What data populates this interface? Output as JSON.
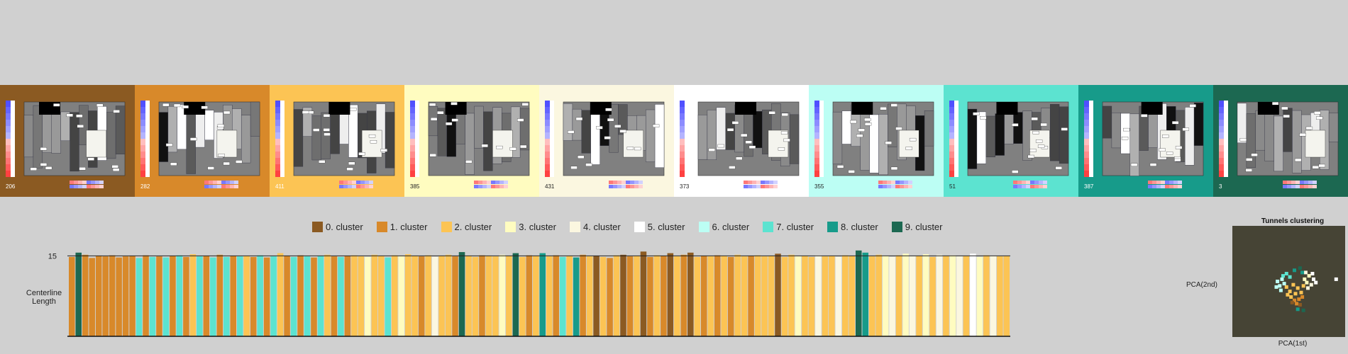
{
  "clusters": [
    {
      "label": "0. cluster",
      "color": "#8b5a22",
      "count": "206",
      "light": false
    },
    {
      "label": "1. cluster",
      "color": "#d8892a",
      "count": "282",
      "light": false
    },
    {
      "label": "2. cluster",
      "color": "#fcc454",
      "count": "411",
      "light": false
    },
    {
      "label": "3. cluster",
      "color": "#fffcc0",
      "count": "385",
      "light": true
    },
    {
      "label": "4. cluster",
      "color": "#fbf7e0",
      "count": "431",
      "light": true
    },
    {
      "label": "5. cluster",
      "color": "#ffffff",
      "count": "373",
      "light": true
    },
    {
      "label": "6. cluster",
      "color": "#bcfef4",
      "count": "355",
      "light": true
    },
    {
      "label": "7. cluster",
      "color": "#5ce3d0",
      "count": "51",
      "light": true
    },
    {
      "label": "8. cluster",
      "color": "#179b8a",
      "count": "387",
      "light": false
    },
    {
      "label": "9. cluster",
      "color": "#1c6851",
      "count": "3",
      "light": false
    }
  ],
  "chart_data": [
    {
      "type": "bar",
      "ylabel": "Centerline Length",
      "y_ticks": [
        15
      ],
      "ylim": [
        0,
        16.5
      ],
      "legend_position": "top",
      "x_labels": "none",
      "note_values": "approximate bar heights read from the image, colored by cluster index",
      "bars": [
        {
          "cluster": 1,
          "value": 14.8
        },
        {
          "cluster": 9,
          "value": 15.6
        },
        {
          "cluster": 1,
          "value": 15.2
        },
        {
          "cluster": 1,
          "value": 14.6
        },
        {
          "cluster": 1,
          "value": 15.0
        },
        {
          "cluster": 1,
          "value": 14.9
        },
        {
          "cluster": 1,
          "value": 15.1
        },
        {
          "cluster": 1,
          "value": 14.7
        },
        {
          "cluster": 1,
          "value": 14.9
        },
        {
          "cluster": 1,
          "value": 15.0
        },
        {
          "cluster": 7,
          "value": 14.6
        },
        {
          "cluster": 1,
          "value": 15.1
        },
        {
          "cluster": 7,
          "value": 14.8
        },
        {
          "cluster": 1,
          "value": 14.9
        },
        {
          "cluster": 7,
          "value": 14.7
        },
        {
          "cluster": 1,
          "value": 15.0
        },
        {
          "cluster": 7,
          "value": 15.1
        },
        {
          "cluster": 1,
          "value": 14.8
        },
        {
          "cluster": 2,
          "value": 15.3
        },
        {
          "cluster": 7,
          "value": 14.9
        },
        {
          "cluster": 1,
          "value": 15.0
        },
        {
          "cluster": 7,
          "value": 14.7
        },
        {
          "cluster": 1,
          "value": 15.2
        },
        {
          "cluster": 7,
          "value": 14.8
        },
        {
          "cluster": 1,
          "value": 15.0
        },
        {
          "cluster": 7,
          "value": 14.9
        },
        {
          "cluster": 2,
          "value": 15.0
        },
        {
          "cluster": 1,
          "value": 14.8
        },
        {
          "cluster": 7,
          "value": 15.1
        },
        {
          "cluster": 1,
          "value": 14.7
        },
        {
          "cluster": 7,
          "value": 14.9
        },
        {
          "cluster": 2,
          "value": 15.5
        },
        {
          "cluster": 1,
          "value": 15.0
        },
        {
          "cluster": 7,
          "value": 14.8
        },
        {
          "cluster": 1,
          "value": 15.1
        },
        {
          "cluster": 7,
          "value": 14.9
        },
        {
          "cluster": 1,
          "value": 14.7
        },
        {
          "cluster": 7,
          "value": 15.0
        },
        {
          "cluster": 2,
          "value": 15.2
        },
        {
          "cluster": 1,
          "value": 14.9
        },
        {
          "cluster": 7,
          "value": 14.8
        },
        {
          "cluster": 1,
          "value": 15.0
        },
        {
          "cluster": 2,
          "value": 15.1
        },
        {
          "cluster": 2,
          "value": 14.9
        },
        {
          "cluster": 3,
          "value": 14.8
        },
        {
          "cluster": 2,
          "value": 15.2
        },
        {
          "cluster": 2,
          "value": 15.0
        },
        {
          "cluster": 7,
          "value": 14.7
        },
        {
          "cluster": 2,
          "value": 15.1
        },
        {
          "cluster": 3,
          "value": 14.9
        },
        {
          "cluster": 2,
          "value": 15.3
        },
        {
          "cluster": 2,
          "value": 15.0
        },
        {
          "cluster": 1,
          "value": 14.9
        },
        {
          "cluster": 2,
          "value": 15.1
        },
        {
          "cluster": 4,
          "value": 14.8
        },
        {
          "cluster": 2,
          "value": 15.0
        },
        {
          "cluster": 2,
          "value": 15.2
        },
        {
          "cluster": 1,
          "value": 14.9
        },
        {
          "cluster": 9,
          "value": 15.7
        },
        {
          "cluster": 2,
          "value": 15.0
        },
        {
          "cluster": 2,
          "value": 14.8
        },
        {
          "cluster": 1,
          "value": 15.1
        },
        {
          "cluster": 2,
          "value": 15.0
        },
        {
          "cluster": 2,
          "value": 14.9
        },
        {
          "cluster": 3,
          "value": 15.2
        },
        {
          "cluster": 2,
          "value": 15.0
        },
        {
          "cluster": 9,
          "value": 15.5
        },
        {
          "cluster": 2,
          "value": 14.8
        },
        {
          "cluster": 1,
          "value": 15.1
        },
        {
          "cluster": 2,
          "value": 15.0
        },
        {
          "cluster": 8,
          "value": 15.5
        },
        {
          "cluster": 2,
          "value": 14.9
        },
        {
          "cluster": 1,
          "value": 15.1
        },
        {
          "cluster": 7,
          "value": 14.8
        },
        {
          "cluster": 2,
          "value": 15.0
        },
        {
          "cluster": 8,
          "value": 14.7
        },
        {
          "cluster": 1,
          "value": 15.2
        },
        {
          "cluster": 2,
          "value": 14.9
        },
        {
          "cluster": 0,
          "value": 15.0
        },
        {
          "cluster": 2,
          "value": 14.8
        },
        {
          "cluster": 1,
          "value": 14.6
        },
        {
          "cluster": 2,
          "value": 15.1
        },
        {
          "cluster": 0,
          "value": 15.2
        },
        {
          "cluster": 1,
          "value": 14.9
        },
        {
          "cluster": 2,
          "value": 15.0
        },
        {
          "cluster": 0,
          "value": 15.8
        },
        {
          "cluster": 1,
          "value": 14.8
        },
        {
          "cluster": 2,
          "value": 15.1
        },
        {
          "cluster": 1,
          "value": 15.0
        },
        {
          "cluster": 0,
          "value": 15.5
        },
        {
          "cluster": 2,
          "value": 14.9
        },
        {
          "cluster": 1,
          "value": 15.2
        },
        {
          "cluster": 0,
          "value": 15.6
        },
        {
          "cluster": 2,
          "value": 14.8
        },
        {
          "cluster": 1,
          "value": 15.0
        },
        {
          "cluster": 2,
          "value": 14.9
        },
        {
          "cluster": 1,
          "value": 15.1
        },
        {
          "cluster": 2,
          "value": 15.0
        },
        {
          "cluster": 1,
          "value": 14.8
        },
        {
          "cluster": 2,
          "value": 15.2
        },
        {
          "cluster": 2,
          "value": 14.9
        },
        {
          "cluster": 1,
          "value": 15.0
        },
        {
          "cluster": 2,
          "value": 15.1
        },
        {
          "cluster": 2,
          "value": 14.9
        },
        {
          "cluster": 2,
          "value": 15.0
        },
        {
          "cluster": 0,
          "value": 15.4
        },
        {
          "cluster": 2,
          "value": 14.8
        },
        {
          "cluster": 2,
          "value": 15.2
        },
        {
          "cluster": 3,
          "value": 14.9
        },
        {
          "cluster": 2,
          "value": 15.0
        },
        {
          "cluster": 2,
          "value": 14.8
        },
        {
          "cluster": 4,
          "value": 15.1
        },
        {
          "cluster": 2,
          "value": 14.9
        },
        {
          "cluster": 2,
          "value": 15.0
        },
        {
          "cluster": 4,
          "value": 14.8
        },
        {
          "cluster": 2,
          "value": 15.1
        },
        {
          "cluster": 2,
          "value": 15.0
        },
        {
          "cluster": 9,
          "value": 16.0
        },
        {
          "cluster": 8,
          "value": 15.6
        },
        {
          "cluster": 2,
          "value": 14.9
        },
        {
          "cluster": 2,
          "value": 15.2
        },
        {
          "cluster": 3,
          "value": 15.0
        },
        {
          "cluster": 4,
          "value": 14.8
        },
        {
          "cluster": 2,
          "value": 15.1
        },
        {
          "cluster": 3,
          "value": 15.4
        },
        {
          "cluster": 4,
          "value": 14.9
        },
        {
          "cluster": 2,
          "value": 15.0
        },
        {
          "cluster": 3,
          "value": 15.3
        },
        {
          "cluster": 2,
          "value": 14.8
        },
        {
          "cluster": 4,
          "value": 15.2
        },
        {
          "cluster": 2,
          "value": 15.0
        },
        {
          "cluster": 3,
          "value": 15.1
        },
        {
          "cluster": 4,
          "value": 14.9
        },
        {
          "cluster": 2,
          "value": 15.0
        },
        {
          "cluster": 5,
          "value": 15.4
        },
        {
          "cluster": 3,
          "value": 14.8
        },
        {
          "cluster": 2,
          "value": 15.1
        },
        {
          "cluster": 4,
          "value": 15.0
        },
        {
          "cluster": 2,
          "value": 14.9
        },
        {
          "cluster": 2,
          "value": 15.0
        }
      ]
    },
    {
      "type": "scatter",
      "title": "Tunnels clustering",
      "xlabel": "PCA(1st)",
      "ylabel": "PCA(2nd)",
      "note_values": "approximate PCA coordinates, colored by cluster index",
      "points": [
        {
          "cluster": 2,
          "x": 0.48,
          "y": 0.45
        },
        {
          "cluster": 2,
          "x": 0.51,
          "y": 0.41
        },
        {
          "cluster": 2,
          "x": 0.54,
          "y": 0.47
        },
        {
          "cluster": 2,
          "x": 0.56,
          "y": 0.39
        },
        {
          "cluster": 2,
          "x": 0.58,
          "y": 0.44
        },
        {
          "cluster": 2,
          "x": 0.61,
          "y": 0.4
        },
        {
          "cluster": 2,
          "x": 0.52,
          "y": 0.36
        },
        {
          "cluster": 2,
          "x": 0.49,
          "y": 0.38
        },
        {
          "cluster": 2,
          "x": 0.63,
          "y": 0.46
        },
        {
          "cluster": 1,
          "x": 0.55,
          "y": 0.33
        },
        {
          "cluster": 1,
          "x": 0.59,
          "y": 0.34
        },
        {
          "cluster": 1,
          "x": 0.62,
          "y": 0.36
        },
        {
          "cluster": 1,
          "x": 0.57,
          "y": 0.3
        },
        {
          "cluster": 0,
          "x": 0.53,
          "y": 0.31
        },
        {
          "cluster": 0,
          "x": 0.6,
          "y": 0.29
        },
        {
          "cluster": 6,
          "x": 0.4,
          "y": 0.5
        },
        {
          "cluster": 6,
          "x": 0.42,
          "y": 0.46
        },
        {
          "cluster": 6,
          "x": 0.44,
          "y": 0.52
        },
        {
          "cluster": 6,
          "x": 0.46,
          "y": 0.48
        },
        {
          "cluster": 6,
          "x": 0.43,
          "y": 0.42
        },
        {
          "cluster": 6,
          "x": 0.39,
          "y": 0.45
        },
        {
          "cluster": 7,
          "x": 0.45,
          "y": 0.55
        },
        {
          "cluster": 7,
          "x": 0.48,
          "y": 0.57
        },
        {
          "cluster": 7,
          "x": 0.51,
          "y": 0.54
        },
        {
          "cluster": 3,
          "x": 0.64,
          "y": 0.52
        },
        {
          "cluster": 3,
          "x": 0.66,
          "y": 0.49
        },
        {
          "cluster": 3,
          "x": 0.68,
          "y": 0.55
        },
        {
          "cluster": 4,
          "x": 0.67,
          "y": 0.44
        },
        {
          "cluster": 4,
          "x": 0.7,
          "y": 0.47
        },
        {
          "cluster": 4,
          "x": 0.65,
          "y": 0.58
        },
        {
          "cluster": 5,
          "x": 0.72,
          "y": 0.52
        },
        {
          "cluster": 5,
          "x": 0.74,
          "y": 0.49
        },
        {
          "cluster": 5,
          "x": 0.71,
          "y": 0.57
        },
        {
          "cluster": 5,
          "x": 0.92,
          "y": 0.52
        },
        {
          "cluster": 8,
          "x": 0.62,
          "y": 0.58
        },
        {
          "cluster": 8,
          "x": 0.55,
          "y": 0.6
        },
        {
          "cluster": 8,
          "x": 0.58,
          "y": 0.25
        },
        {
          "cluster": 9,
          "x": 0.63,
          "y": 0.24
        },
        {
          "cluster": 9,
          "x": 0.6,
          "y": 0.62
        }
      ]
    }
  ]
}
